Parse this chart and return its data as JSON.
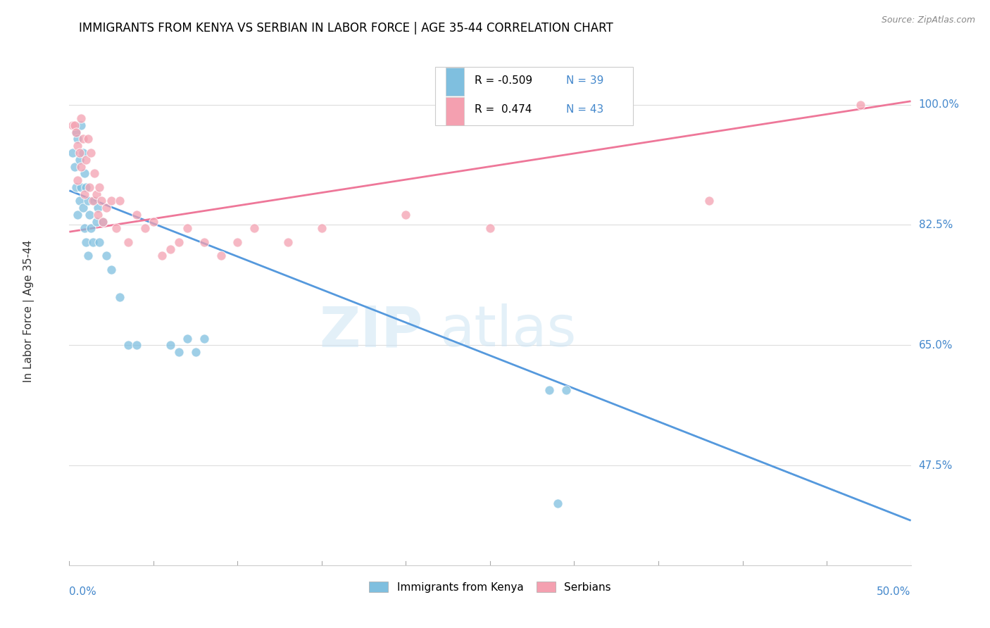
{
  "title": "IMMIGRANTS FROM KENYA VS SERBIAN IN LABOR FORCE | AGE 35-44 CORRELATION CHART",
  "source": "Source: ZipAtlas.com",
  "ylabel": "In Labor Force | Age 35-44",
  "ytick_labels": [
    "100.0%",
    "82.5%",
    "65.0%",
    "47.5%"
  ],
  "ytick_values": [
    1.0,
    0.825,
    0.65,
    0.475
  ],
  "xlim": [
    0.0,
    0.5
  ],
  "ylim": [
    0.33,
    1.07
  ],
  "legend_r_kenya": "-0.509",
  "legend_n_kenya": "39",
  "legend_r_serbian": " 0.474",
  "legend_n_serbian": "43",
  "kenya_color": "#7fbfdf",
  "serbian_color": "#f4a0b0",
  "kenya_line_color": "#5599DD",
  "serbian_line_color": "#EE7799",
  "dashed_line_color": "#99ccee",
  "kenya_line_x0": 0.0,
  "kenya_line_y0": 0.875,
  "kenya_line_x1": 0.5,
  "kenya_line_y1": 0.395,
  "serbian_line_x0": 0.0,
  "serbian_line_y0": 0.815,
  "serbian_line_x1": 0.5,
  "serbian_line_y1": 1.005,
  "dashed_line_x0": 0.34,
  "dashed_line_x1": 0.5,
  "kenya_scatter_x": [
    0.002,
    0.003,
    0.004,
    0.004,
    0.005,
    0.005,
    0.006,
    0.006,
    0.007,
    0.007,
    0.008,
    0.008,
    0.009,
    0.009,
    0.01,
    0.01,
    0.011,
    0.011,
    0.012,
    0.013,
    0.014,
    0.015,
    0.016,
    0.017,
    0.018,
    0.02,
    0.022,
    0.025,
    0.03,
    0.035,
    0.04,
    0.06,
    0.065,
    0.07,
    0.075,
    0.08,
    0.285,
    0.29,
    0.295
  ],
  "kenya_scatter_y": [
    0.93,
    0.91,
    0.96,
    0.88,
    0.95,
    0.84,
    0.92,
    0.86,
    0.97,
    0.88,
    0.93,
    0.85,
    0.9,
    0.82,
    0.88,
    0.8,
    0.86,
    0.78,
    0.84,
    0.82,
    0.8,
    0.86,
    0.83,
    0.85,
    0.8,
    0.83,
    0.78,
    0.76,
    0.72,
    0.65,
    0.65,
    0.65,
    0.64,
    0.66,
    0.64,
    0.66,
    0.585,
    0.42,
    0.585
  ],
  "serbian_scatter_x": [
    0.002,
    0.003,
    0.004,
    0.005,
    0.005,
    0.006,
    0.007,
    0.007,
    0.008,
    0.009,
    0.01,
    0.011,
    0.012,
    0.013,
    0.014,
    0.015,
    0.016,
    0.017,
    0.018,
    0.019,
    0.02,
    0.022,
    0.025,
    0.028,
    0.03,
    0.035,
    0.04,
    0.045,
    0.05,
    0.055,
    0.06,
    0.065,
    0.07,
    0.08,
    0.09,
    0.1,
    0.11,
    0.13,
    0.15,
    0.2,
    0.25,
    0.38,
    0.47
  ],
  "serbian_scatter_y": [
    0.97,
    0.97,
    0.96,
    0.94,
    0.89,
    0.93,
    0.98,
    0.91,
    0.95,
    0.87,
    0.92,
    0.95,
    0.88,
    0.93,
    0.86,
    0.9,
    0.87,
    0.84,
    0.88,
    0.86,
    0.83,
    0.85,
    0.86,
    0.82,
    0.86,
    0.8,
    0.84,
    0.82,
    0.83,
    0.78,
    0.79,
    0.8,
    0.82,
    0.8,
    0.78,
    0.8,
    0.82,
    0.8,
    0.82,
    0.84,
    0.82,
    0.86,
    1.0
  ]
}
